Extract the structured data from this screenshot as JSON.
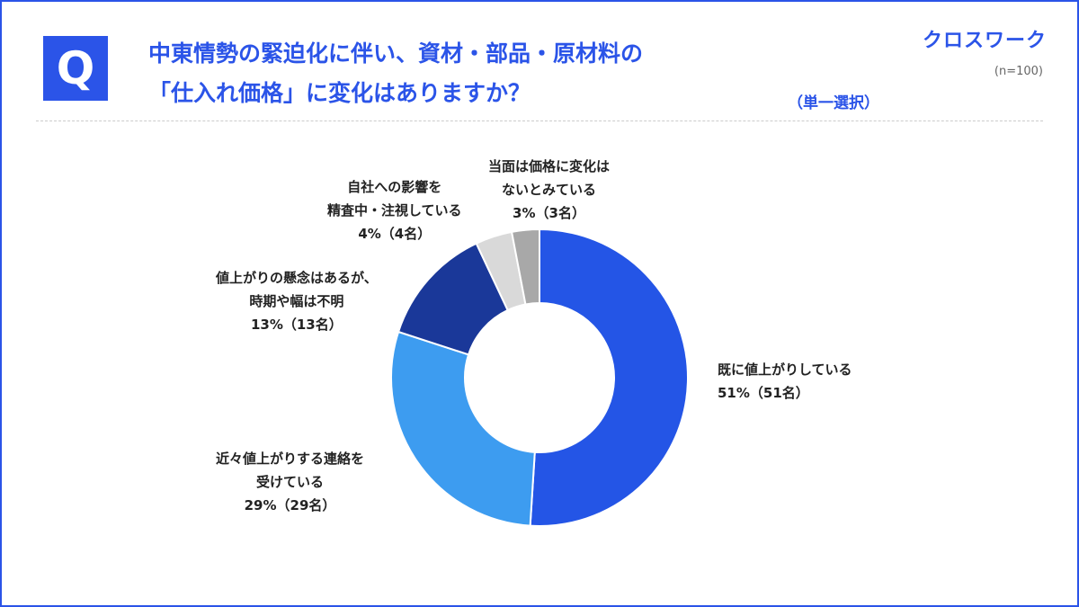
{
  "header": {
    "badge": "Q",
    "title_line1": "中東情勢の緊迫化に伴い、資材・部品・原材料の",
    "title_line2": "「仕入れ価格」に変化はありますか？",
    "select_type": "（単一選択）",
    "brand": "クロスワーク",
    "sample": "(n=100)"
  },
  "colors": {
    "accent": "#2b54e8"
  },
  "chart_data": {
    "type": "pie",
    "subtype": "donut",
    "start": "12 o'clock, clockwise",
    "slices": [
      {
        "name": "既に値上がりしている",
        "value": 51,
        "value_label": "51%（51名）",
        "label_lines": [
          "既に値上がりしている"
        ],
        "color": "#2455e6"
      },
      {
        "name": "近々値上がりする連絡を受けている",
        "value": 29,
        "value_label": "29%（29名）",
        "label_lines": [
          "近々値上がりする連絡を",
          "受けている"
        ],
        "color": "#3d9cf0"
      },
      {
        "name": "値上がりの懸念はあるが、時期や幅は不明",
        "value": 13,
        "value_label": "13%（13名）",
        "label_lines": [
          "値上がりの懸念はあるが、",
          "時期や幅は不明"
        ],
        "color": "#1a3899"
      },
      {
        "name": "自社への影響を精査中・注視している",
        "value": 4,
        "value_label": "4%（4名）",
        "label_lines": [
          "自社への影響を",
          "精査中・注視している"
        ],
        "color": "#d9d9d9"
      },
      {
        "name": "当面は価格に変化はないとみている",
        "value": 3,
        "value_label": "3%（3名）",
        "label_lines": [
          "当面は価格に変化は",
          "ないとみている"
        ],
        "color": "#a8a8a8"
      }
    ]
  }
}
